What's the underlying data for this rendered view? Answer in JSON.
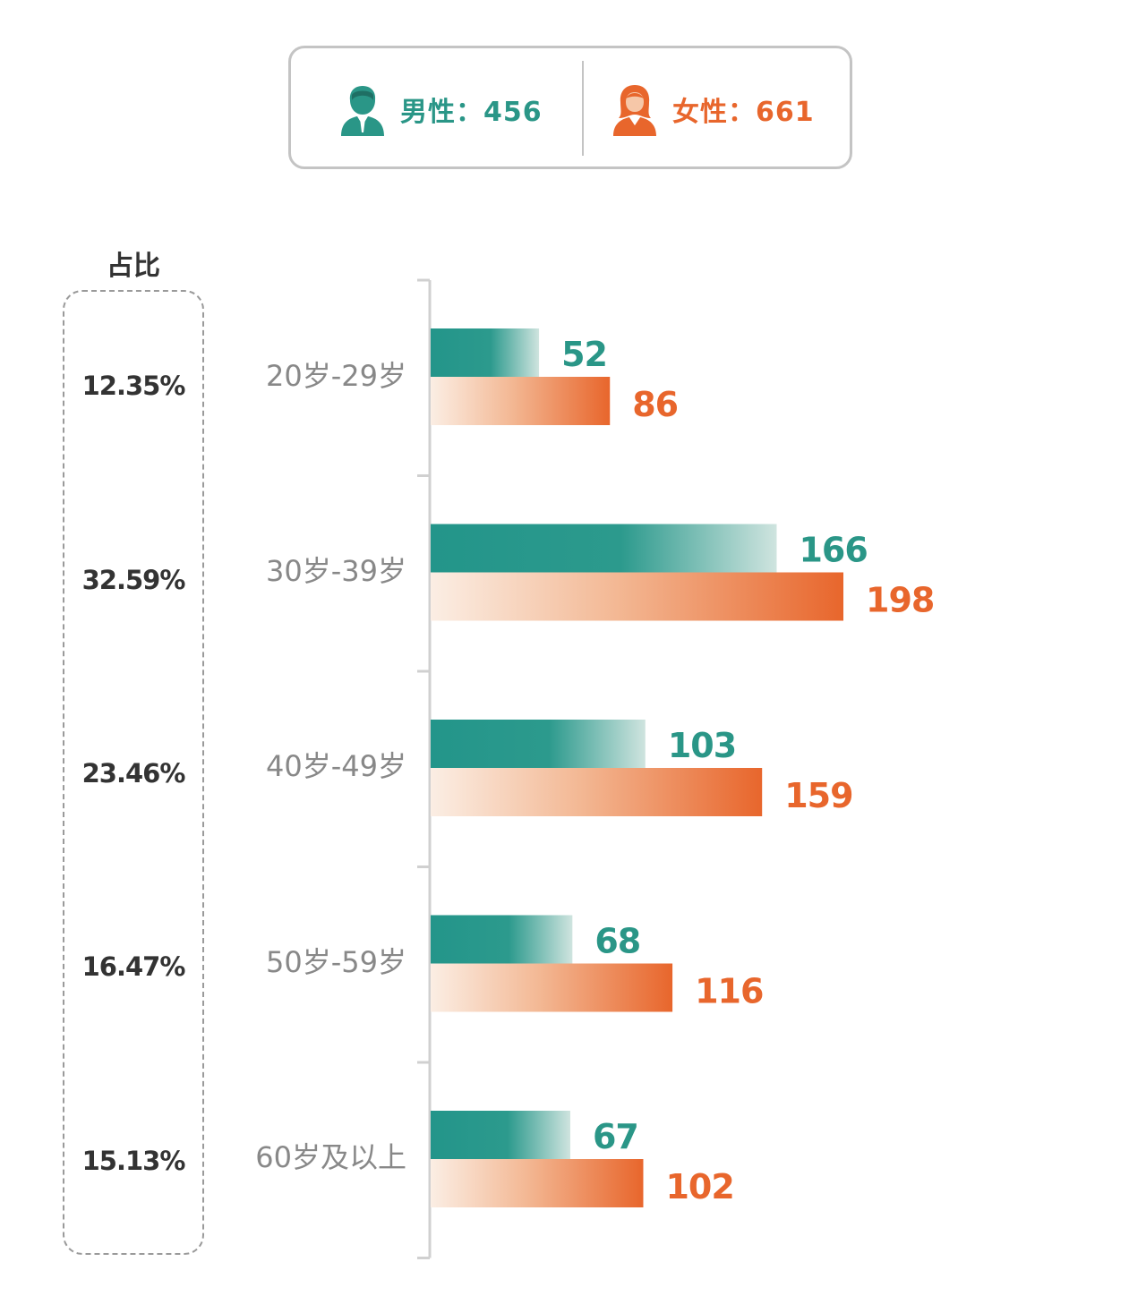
{
  "legend": {
    "male": {
      "icon": "male-person-icon",
      "text": "男性：456",
      "color": "#2a9687"
    },
    "female": {
      "icon": "female-person-icon",
      "text": "女性：661",
      "color": "#e8662c"
    }
  },
  "share": {
    "title": "占比",
    "values": [
      "12.35%",
      "32.59%",
      "23.46%",
      "16.47%",
      "15.13%"
    ]
  },
  "chart_data": {
    "type": "bar",
    "orientation": "horizontal",
    "categories": [
      "20岁-29岁",
      "30岁-39岁",
      "40岁-49岁",
      "50岁-59岁",
      "60岁及以上"
    ],
    "series": [
      {
        "values": [
          52,
          166,
          103,
          68,
          67
        ],
        "color": "#2a9687"
      },
      {
        "values": [
          86,
          198,
          159,
          116,
          102
        ],
        "color": "#e8662c"
      }
    ],
    "value_labels": {
      "male": [
        "52",
        "166",
        "103",
        "68",
        "67"
      ],
      "female": [
        "86",
        "198",
        "159",
        "116",
        "102"
      ]
    },
    "xlim": [
      0,
      198
    ],
    "grid": false
  }
}
